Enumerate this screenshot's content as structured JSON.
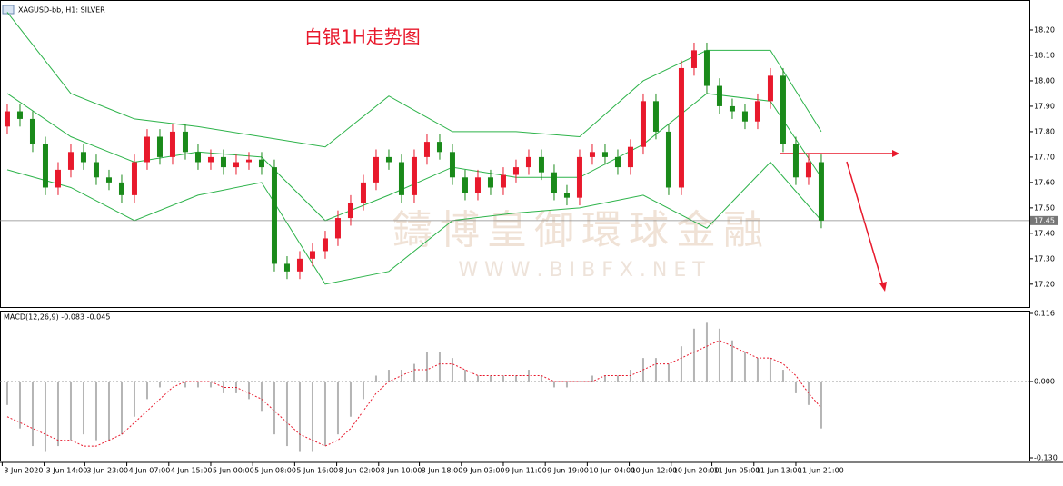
{
  "header": "XAGUSD-bb, H1:  SILVER",
  "watermark": {
    "cn": "鑄博皇御環球金融",
    "url": "W W W . B I B F X . N E T"
  },
  "chart_data": [
    {
      "type": "candlestick",
      "title": "白银1H走势图",
      "up_color": "#e8192c",
      "down_color": "#1a8a1a",
      "open": [
        17.82,
        17.88,
        17.85,
        17.75,
        17.58,
        17.65,
        17.72,
        17.68,
        17.62,
        17.6,
        17.55,
        17.68,
        17.78,
        17.7,
        17.8,
        17.72,
        17.68,
        17.7,
        17.66,
        17.68,
        17.69,
        17.66,
        17.28,
        17.25,
        17.3,
        17.33,
        17.38,
        17.46,
        17.52,
        17.6,
        17.7,
        17.68,
        17.55,
        17.7,
        17.76,
        17.72,
        17.62,
        17.56,
        17.62,
        17.58,
        17.63,
        17.66,
        17.7,
        17.64,
        17.56,
        17.54,
        17.7,
        17.72,
        17.7,
        17.66,
        17.74,
        17.92,
        17.8,
        17.58,
        18.05,
        18.12,
        17.98,
        17.9,
        17.88,
        17.84,
        17.92,
        18.02,
        17.75,
        17.62,
        17.68
      ],
      "high": [
        17.91,
        17.91,
        17.88,
        17.78,
        17.68,
        17.75,
        17.75,
        17.71,
        17.65,
        17.63,
        17.71,
        17.81,
        17.81,
        17.83,
        17.83,
        17.75,
        17.73,
        17.73,
        17.71,
        17.72,
        17.72,
        17.69,
        17.31,
        17.33,
        17.36,
        17.41,
        17.49,
        17.55,
        17.63,
        17.73,
        17.73,
        17.71,
        17.73,
        17.79,
        17.79,
        17.75,
        17.65,
        17.65,
        17.65,
        17.66,
        17.69,
        17.73,
        17.73,
        17.67,
        17.59,
        17.73,
        17.75,
        17.75,
        17.73,
        17.77,
        17.95,
        17.95,
        17.83,
        18.08,
        18.15,
        18.15,
        18.01,
        17.93,
        17.91,
        17.95,
        18.05,
        18.05,
        17.78,
        17.71,
        17.71
      ],
      "low": [
        17.79,
        17.82,
        17.72,
        17.55,
        17.55,
        17.62,
        17.65,
        17.59,
        17.57,
        17.52,
        17.52,
        17.65,
        17.67,
        17.67,
        17.69,
        17.65,
        17.65,
        17.63,
        17.63,
        17.65,
        17.63,
        17.25,
        17.22,
        17.22,
        17.27,
        17.3,
        17.35,
        17.43,
        17.49,
        17.57,
        17.65,
        17.52,
        17.52,
        17.67,
        17.69,
        17.59,
        17.53,
        17.53,
        17.55,
        17.55,
        17.6,
        17.63,
        17.61,
        17.53,
        17.51,
        17.51,
        17.67,
        17.67,
        17.63,
        17.63,
        17.71,
        17.77,
        17.55,
        17.55,
        18.02,
        17.95,
        17.87,
        17.85,
        17.81,
        17.81,
        17.89,
        17.72,
        17.59,
        17.59,
        17.42
      ],
      "close": [
        17.88,
        17.85,
        17.75,
        17.58,
        17.65,
        17.72,
        17.68,
        17.62,
        17.6,
        17.55,
        17.68,
        17.78,
        17.7,
        17.8,
        17.72,
        17.68,
        17.7,
        17.66,
        17.68,
        17.69,
        17.66,
        17.28,
        17.25,
        17.3,
        17.33,
        17.38,
        17.46,
        17.52,
        17.6,
        17.7,
        17.68,
        17.55,
        17.7,
        17.76,
        17.72,
        17.62,
        17.56,
        17.62,
        17.58,
        17.63,
        17.66,
        17.7,
        17.64,
        17.56,
        17.54,
        17.7,
        17.72,
        17.7,
        17.66,
        17.74,
        17.92,
        17.8,
        17.58,
        18.05,
        18.12,
        17.98,
        17.9,
        17.88,
        17.84,
        17.92,
        18.02,
        17.75,
        17.62,
        17.68,
        17.45
      ],
      "bands": {
        "color": "#2db34a",
        "x": [
          0,
          5,
          10,
          15,
          20,
          25,
          30,
          35,
          40,
          45,
          50,
          55,
          60,
          64
        ],
        "upper": [
          18.27,
          17.95,
          17.85,
          17.82,
          17.78,
          17.74,
          17.94,
          17.8,
          17.8,
          17.78,
          18.0,
          18.12,
          18.12,
          17.8
        ],
        "middle": [
          17.95,
          17.78,
          17.68,
          17.72,
          17.7,
          17.45,
          17.55,
          17.66,
          17.62,
          17.62,
          17.75,
          17.95,
          17.92,
          17.62
        ],
        "lower": [
          17.65,
          17.58,
          17.45,
          17.55,
          17.6,
          17.2,
          17.25,
          17.45,
          17.48,
          17.5,
          17.55,
          17.42,
          17.68,
          17.45
        ]
      },
      "last_price": {
        "value": 17.45,
        "label": "17.45"
      },
      "ylim": [
        17.11,
        18.3
      ],
      "xlim": [
        -0.57,
        80.36
      ],
      "yticks": [
        {
          "value": 18.2,
          "label": "18.20"
        },
        {
          "value": 18.1,
          "label": "18.10"
        },
        {
          "value": 18.0,
          "label": "18.00"
        },
        {
          "value": 17.9,
          "label": "17.90"
        },
        {
          "value": 17.8,
          "label": "17.80"
        },
        {
          "value": 17.7,
          "label": "17.70"
        },
        {
          "value": 17.6,
          "label": "17.60"
        },
        {
          "value": 17.5,
          "label": "17.50"
        },
        {
          "value": 17.4,
          "label": "17.40"
        },
        {
          "value": 17.3,
          "label": "17.30"
        },
        {
          "value": 17.2,
          "label": "17.20"
        }
      ],
      "xticks": [
        {
          "value": -0.4,
          "label": "3 Jun 2020"
        },
        {
          "value": 2.9,
          "label": "3 Jun 14:00"
        },
        {
          "value": 6.1,
          "label": "3 Jun 23:00"
        },
        {
          "value": 9.4,
          "label": "4 Jun 07:00"
        },
        {
          "value": 12.7,
          "label": "4 Jun 15:00"
        },
        {
          "value": 16.0,
          "label": "5 Jun 00:00"
        },
        {
          "value": 19.3,
          "label": "5 Jun 08:00"
        },
        {
          "value": 22.6,
          "label": "5 Jun 16:00"
        },
        {
          "value": 25.9,
          "label": "8 Jun 02:00"
        },
        {
          "value": 29.2,
          "label": "8 Jun 10:00"
        },
        {
          "value": 32.4,
          "label": "8 Jun 18:00"
        },
        {
          "value": 35.7,
          "label": "9 Jun 03:00"
        },
        {
          "value": 39.0,
          "label": "9 Jun 11:00"
        },
        {
          "value": 42.3,
          "label": "9 Jun 19:00"
        },
        {
          "value": 45.6,
          "label": "10 Jun 04:00"
        },
        {
          "value": 48.9,
          "label": "10 Jun 12:00"
        },
        {
          "value": 52.2,
          "label": "10 Jun 20:00"
        },
        {
          "value": 55.4,
          "label": "11 Jun 05:00"
        },
        {
          "value": 58.7,
          "label": "11 Jun 13:00"
        },
        {
          "value": 62.0,
          "label": "11 Jun 21:00"
        }
      ]
    },
    {
      "type": "macd",
      "title": "MACD(12,26,9) -0.083 -0.045",
      "xlim": [
        -0.57,
        80.36
      ],
      "ylim": [
        -0.13,
        0.116
      ],
      "yticks": [
        0.116,
        {
          "value": 0,
          "label": "0.000"
        },
        {
          "value": -0.13,
          "label": "-0.130"
        }
      ],
      "series": [
        {
          "kind": "histogram",
          "color": "#b5b5b5",
          "values": [
            -0.04,
            -0.08,
            -0.11,
            -0.12,
            -0.11,
            -0.1,
            -0.09,
            -0.1,
            -0.1,
            -0.09,
            -0.06,
            -0.03,
            -0.01,
            0.0,
            -0.01,
            -0.01,
            -0.01,
            -0.02,
            -0.02,
            -0.03,
            -0.05,
            -0.09,
            -0.11,
            -0.12,
            -0.12,
            -0.11,
            -0.09,
            -0.06,
            -0.03,
            0.01,
            0.02,
            0.02,
            0.03,
            0.05,
            0.05,
            0.04,
            0.02,
            0.01,
            0.01,
            0.01,
            0.01,
            0.02,
            0.01,
            -0.01,
            -0.01,
            0.0,
            0.01,
            0.01,
            0.01,
            0.02,
            0.04,
            0.04,
            0.03,
            0.06,
            0.09,
            0.1,
            0.09,
            0.07,
            0.05,
            0.04,
            0.04,
            0.02,
            -0.02,
            -0.04,
            -0.08
          ]
        },
        {
          "kind": "signal",
          "color": "#e8192c",
          "values": [
            -0.06,
            -0.07,
            -0.08,
            -0.09,
            -0.1,
            -0.1,
            -0.11,
            -0.11,
            -0.1,
            -0.09,
            -0.07,
            -0.05,
            -0.03,
            -0.01,
            0.0,
            0.0,
            0.0,
            -0.01,
            -0.01,
            -0.02,
            -0.03,
            -0.05,
            -0.07,
            -0.09,
            -0.1,
            -0.11,
            -0.1,
            -0.08,
            -0.05,
            -0.02,
            0.0,
            0.01,
            0.02,
            0.02,
            0.03,
            0.03,
            0.02,
            0.01,
            0.01,
            0.01,
            0.01,
            0.01,
            0.01,
            0.0,
            0.0,
            0.0,
            0.0,
            0.01,
            0.01,
            0.01,
            0.02,
            0.03,
            0.03,
            0.04,
            0.05,
            0.06,
            0.07,
            0.06,
            0.05,
            0.04,
            0.04,
            0.03,
            0.01,
            -0.02,
            -0.045
          ]
        }
      ]
    }
  ]
}
